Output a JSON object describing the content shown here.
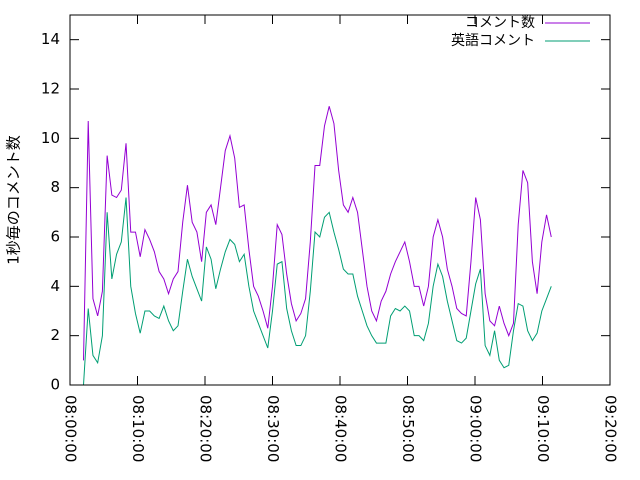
{
  "chart_data": {
    "type": "line",
    "y_label": "1秒毎のコメント数",
    "x": [
      "08:02:00",
      "08:02:42",
      "08:03:24",
      "08:04:06",
      "08:04:48",
      "08:05:30",
      "08:06:12",
      "08:06:54",
      "08:07:36",
      "08:08:18",
      "08:09:00",
      "08:09:42",
      "08:10:24",
      "08:11:06",
      "08:11:48",
      "08:12:30",
      "08:13:12",
      "08:13:54",
      "08:14:36",
      "08:15:18",
      "08:16:00",
      "08:16:42",
      "08:17:24",
      "08:18:06",
      "08:18:48",
      "08:19:30",
      "08:20:12",
      "08:20:54",
      "08:21:36",
      "08:22:18",
      "08:23:00",
      "08:23:42",
      "08:24:24",
      "08:25:06",
      "08:25:48",
      "08:26:30",
      "08:27:12",
      "08:27:54",
      "08:28:36",
      "08:29:18",
      "08:30:00",
      "08:30:42",
      "08:31:24",
      "08:32:06",
      "08:32:48",
      "08:33:30",
      "08:34:12",
      "08:34:54",
      "08:35:36",
      "08:36:18",
      "08:37:00",
      "08:37:42",
      "08:38:24",
      "08:39:06",
      "08:39:48",
      "08:40:30",
      "08:41:12",
      "08:41:54",
      "08:42:36",
      "08:43:18",
      "08:44:00",
      "08:44:42",
      "08:45:24",
      "08:46:06",
      "08:46:48",
      "08:47:30",
      "08:48:12",
      "08:48:54",
      "08:49:36",
      "08:50:18",
      "08:51:00",
      "08:51:42",
      "08:52:24",
      "08:53:06",
      "08:53:48",
      "08:54:30",
      "08:55:12",
      "08:55:54",
      "08:56:36",
      "08:57:18",
      "08:58:00",
      "08:58:42",
      "08:59:24",
      "09:00:06",
      "09:00:48",
      "09:01:30",
      "09:02:12",
      "09:02:54",
      "09:03:36",
      "09:04:18",
      "09:05:00",
      "09:05:42",
      "09:06:24",
      "09:07:06",
      "09:07:48",
      "09:08:30",
      "09:09:12",
      "09:09:54",
      "09:10:36",
      "09:11:18"
    ],
    "series": [
      {
        "name": "コメント数",
        "color": "#9400d3",
        "values": [
          1.0,
          10.7,
          3.5,
          2.8,
          3.8,
          9.3,
          7.7,
          7.6,
          7.9,
          9.8,
          6.2,
          6.2,
          5.2,
          6.3,
          5.9,
          5.4,
          4.6,
          4.3,
          3.7,
          4.3,
          4.6,
          6.6,
          8.1,
          6.6,
          6.2,
          5.0,
          7.0,
          7.3,
          6.5,
          8.0,
          9.5,
          10.1,
          9.2,
          7.2,
          7.3,
          5.5,
          4.0,
          3.6,
          3.0,
          2.3,
          4.0,
          6.5,
          6.1,
          4.5,
          3.3,
          2.6,
          2.9,
          3.5,
          5.8,
          8.9,
          8.9,
          10.5,
          11.3,
          10.6,
          8.7,
          7.3,
          7.0,
          7.6,
          7.0,
          5.5,
          4.0,
          3.0,
          2.6,
          3.4,
          3.8,
          4.5,
          5.0,
          5.4,
          5.8,
          5.0,
          4.0,
          4.0,
          3.2,
          4.0,
          6.0,
          6.7,
          6.0,
          4.7,
          4.0,
          3.1,
          2.9,
          2.8,
          5.0,
          7.6,
          6.7,
          3.7,
          2.6,
          2.4,
          3.2,
          2.5,
          2.0,
          2.5,
          6.5,
          8.7,
          8.2,
          5.0,
          3.7,
          5.8,
          6.9,
          6.0
        ]
      },
      {
        "name": "英語コメント",
        "color": "#009e73",
        "values": [
          0.0,
          3.1,
          1.2,
          0.9,
          2.0,
          7.0,
          4.3,
          5.3,
          5.8,
          7.6,
          4.0,
          2.9,
          2.1,
          3.0,
          3.0,
          2.8,
          2.7,
          3.2,
          2.6,
          2.2,
          2.4,
          3.8,
          5.1,
          4.4,
          3.9,
          3.4,
          5.6,
          5.1,
          3.9,
          4.7,
          5.4,
          5.9,
          5.7,
          5.0,
          5.3,
          4.0,
          3.0,
          2.5,
          2.0,
          1.5,
          3.0,
          4.9,
          5.0,
          3.1,
          2.2,
          1.6,
          1.6,
          2.0,
          3.8,
          6.2,
          6.0,
          6.8,
          7.0,
          6.2,
          5.5,
          4.7,
          4.5,
          4.5,
          3.6,
          3.0,
          2.4,
          2.0,
          1.7,
          1.7,
          1.7,
          2.8,
          3.1,
          3.0,
          3.2,
          3.0,
          2.0,
          2.0,
          1.8,
          2.5,
          4.0,
          4.9,
          4.4,
          3.4,
          2.6,
          1.8,
          1.7,
          1.9,
          3.0,
          4.1,
          4.7,
          1.6,
          1.2,
          2.2,
          1.0,
          0.7,
          0.8,
          2.2,
          3.3,
          3.2,
          2.2,
          1.8,
          2.1,
          3.0,
          3.5,
          4.0
        ]
      }
    ],
    "xlim": [
      "08:00:00",
      "09:20:00"
    ],
    "xticks": [
      "08:00:00",
      "08:10:00",
      "08:20:00",
      "08:30:00",
      "08:40:00",
      "08:50:00",
      "09:00:00",
      "09:10:00",
      "09:20:00"
    ],
    "ylim": [
      0,
      15
    ],
    "yticks": [
      0,
      2,
      4,
      6,
      8,
      10,
      12,
      14
    ],
    "legend": "top-right",
    "grid": false
  }
}
